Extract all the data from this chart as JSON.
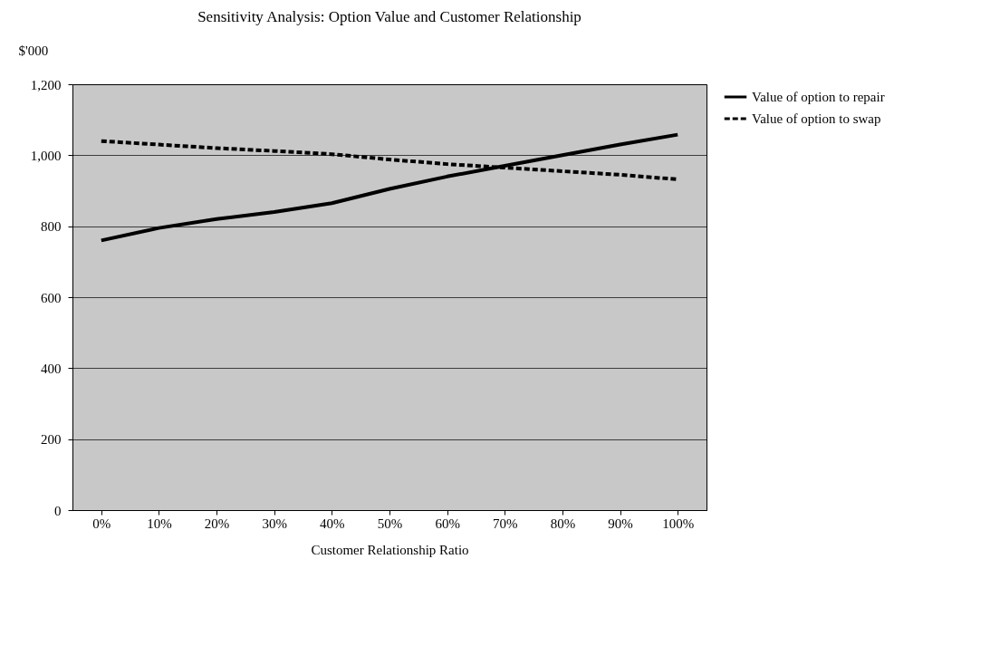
{
  "chart_data": {
    "type": "line",
    "title": "Sensitivity Analysis: Option Value and Customer Relationship",
    "xlabel": "Customer Relationship Ratio",
    "ylabel": "$'000",
    "categories": [
      "0%",
      "10%",
      "20%",
      "30%",
      "40%",
      "50%",
      "60%",
      "70%",
      "80%",
      "90%",
      "100%"
    ],
    "series": [
      {
        "name": "Value of option to repair",
        "color": "#000000",
        "line_style": "solid",
        "values": [
          760,
          795,
          820,
          840,
          865,
          905,
          940,
          970,
          1000,
          1030,
          1058
        ]
      },
      {
        "name": "Value of option to swap",
        "color": "#000000",
        "line_style": "dashed",
        "values": [
          1040,
          1030,
          1020,
          1012,
          1003,
          988,
          975,
          965,
          955,
          945,
          932
        ]
      }
    ],
    "ylim": [
      0,
      1200
    ],
    "yticks": [
      0,
      200,
      400,
      600,
      800,
      {
        "value": 1000,
        "label": "1,000"
      },
      {
        "value": 1200,
        "label": "1,200"
      }
    ],
    "grid": "y",
    "legend": "right",
    "marker": "none"
  }
}
